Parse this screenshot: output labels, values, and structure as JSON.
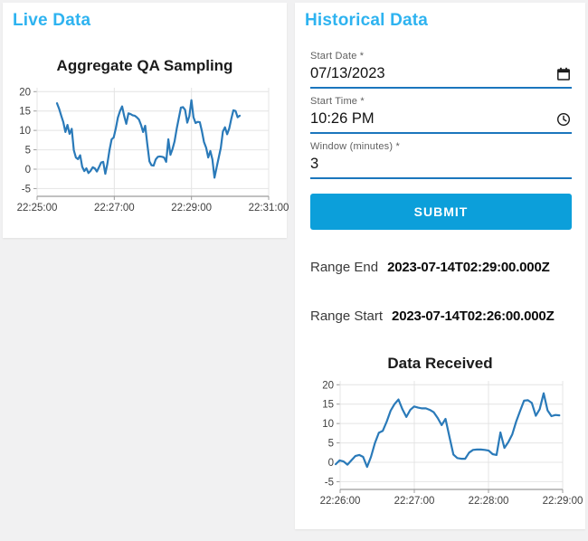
{
  "theme": {
    "accent": "#2eb3f0",
    "primary": "#0c9fda",
    "underline": "#1b76bd",
    "grid": "#e4e4e4",
    "axis": "#9c9c9c",
    "chart_line": "#2a7ab9"
  },
  "live_panel": {
    "title": "Live Data"
  },
  "historical_panel": {
    "title": "Historical Data",
    "form": {
      "start_date": {
        "label": "Start Date *",
        "value": "07/13/2023"
      },
      "start_time": {
        "label": "Start Time *",
        "value": "10:26 PM"
      },
      "window": {
        "label": "Window (minutes) *",
        "value": "3"
      },
      "submit_label": "SUBMIT"
    },
    "range_end": {
      "label": "Range End",
      "value": "2023-07-14T02:29:00.000Z"
    },
    "range_start": {
      "label": "Range Start",
      "value": "2023-07-14T02:26:00.000Z"
    }
  },
  "chart_data": [
    {
      "type": "line",
      "title": "Aggregate QA Sampling",
      "xlabel": "",
      "ylabel": "",
      "x_tick_labels": [
        "22:25:00",
        "22:27:00",
        "22:29:00",
        "22:31:00"
      ],
      "y_ticks": [
        -5,
        0,
        5,
        10,
        15,
        20
      ],
      "ylim": [
        -5,
        20
      ],
      "grid": true,
      "legend": "none",
      "x_data_start": "22:25:22",
      "x_data_end": "22:30:10",
      "line_color": "#2a7ab9",
      "values": [
        17.0,
        15.6,
        13.8,
        12.1,
        9.6,
        11.4,
        9.1,
        10.4,
        4.9,
        3.0,
        2.6,
        3.6,
        0.6,
        -0.5,
        0.2,
        -1.0,
        -0.4,
        0.5,
        0.2,
        -0.6,
        0.5,
        1.7,
        1.9,
        -1.2,
        1.4,
        5.0,
        7.7,
        8.2,
        10.5,
        13.3,
        15.0,
        16.2,
        13.7,
        11.7,
        14.4,
        14.2,
        13.9,
        13.8,
        13.4,
        12.8,
        11.4,
        9.6,
        11.2,
        6.5,
        2.0,
        1.0,
        0.9,
        2.5,
        3.2,
        3.3,
        3.2,
        3.0,
        1.9,
        7.7,
        3.7,
        5.2,
        7.2,
        10.5,
        13.2,
        15.9,
        16.0,
        15.3,
        12.0,
        13.7,
        17.8,
        13.4,
        11.9,
        12.2,
        12.1,
        9.8,
        7.0,
        5.5,
        3.0,
        4.7,
        2.5,
        -2.2,
        0.5,
        3.0,
        5.5,
        9.7,
        10.8,
        9.0,
        10.5,
        13.0,
        15.2,
        15.0,
        13.4,
        13.8
      ]
    },
    {
      "type": "line",
      "title": "Data Received",
      "xlabel": "",
      "ylabel": "",
      "x_tick_labels": [
        "22:26:00",
        "22:27:00",
        "22:28:00",
        "22:29:00"
      ],
      "y_ticks": [
        -5,
        0,
        5,
        10,
        15,
        20
      ],
      "ylim": [
        -5,
        20
      ],
      "grid": true,
      "legend": "none",
      "x_data_start": "22:25:58",
      "x_data_end": "22:29:00",
      "line_color": "#2a7ab9",
      "values": [
        -0.5,
        0.5,
        0.2,
        -0.6,
        0.5,
        1.6,
        1.9,
        1.4,
        -1.2,
        1.4,
        5.0,
        7.6,
        8.1,
        10.5,
        13.3,
        15.0,
        16.2,
        13.7,
        11.7,
        13.5,
        14.4,
        14.1,
        13.9,
        13.9,
        13.5,
        12.9,
        11.4,
        9.6,
        11.2,
        6.5,
        2.0,
        1.1,
        0.9,
        0.9,
        2.5,
        3.2,
        3.3,
        3.3,
        3.2,
        3.0,
        2.1,
        1.9,
        7.7,
        3.7,
        5.2,
        7.2,
        10.5,
        13.2,
        15.9,
        16.0,
        15.3,
        12.0,
        13.7,
        17.8,
        13.4,
        11.9,
        12.2,
        12.1
      ]
    }
  ]
}
